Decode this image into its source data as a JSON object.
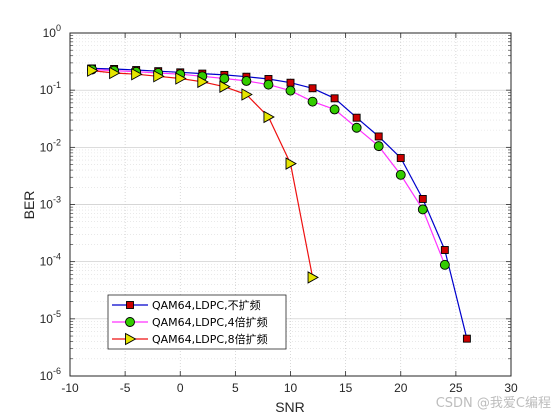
{
  "chart_data": {
    "type": "line",
    "title": "",
    "xlabel": "SNR",
    "ylabel": "BER",
    "xlim": [
      -10,
      30
    ],
    "ylim_log10": [
      -6,
      0
    ],
    "yscale": "log",
    "x_ticks": [
      -10,
      -5,
      0,
      5,
      10,
      15,
      20,
      25,
      30
    ],
    "y_tick_exponents": [
      -6,
      -5,
      -4,
      -3,
      -2,
      -1,
      0
    ],
    "y_tick_base": "10",
    "grid": true,
    "minor_grid": true,
    "legend_position": "bottom-left",
    "series": [
      {
        "name": "QAM64,LDPC,不扩频",
        "color": "#0000cc",
        "marker": "square",
        "marker_fill": "#cc0000",
        "x": [
          -8,
          -6,
          -4,
          -2,
          0,
          2,
          4,
          6,
          8,
          10,
          12,
          14,
          16,
          18,
          20,
          22,
          24,
          26
        ],
        "y": [
          0.24,
          0.235,
          0.225,
          0.215,
          0.205,
          0.195,
          0.185,
          0.172,
          0.157,
          0.135,
          0.108,
          0.072,
          0.033,
          0.0155,
          0.0065,
          0.00125,
          0.00016,
          4.5e-06
        ]
      },
      {
        "name": "QAM64,LDPC,4倍扩频",
        "color": "#ff33ff",
        "marker": "circle",
        "marker_fill": "#33cc00",
        "x": [
          -8,
          -6,
          -4,
          -2,
          0,
          2,
          4,
          6,
          8,
          10,
          12,
          14,
          16,
          18,
          20,
          22,
          24
        ],
        "y": [
          0.23,
          0.22,
          0.21,
          0.2,
          0.19,
          0.175,
          0.16,
          0.145,
          0.125,
          0.098,
          0.063,
          0.046,
          0.022,
          0.0105,
          0.0033,
          0.00082,
          8.8e-05
        ]
      },
      {
        "name": "QAM64,LDPC,8倍扩频",
        "color": "#ee1111",
        "marker": "triangle-right",
        "marker_fill": "#e6e600",
        "x": [
          -8,
          -6,
          -4,
          -2,
          0,
          2,
          4,
          6,
          8,
          10,
          12
        ],
        "y": [
          0.22,
          0.2,
          0.19,
          0.175,
          0.16,
          0.14,
          0.115,
          0.084,
          0.034,
          0.0052,
          5.3e-05
        ]
      }
    ]
  },
  "watermark": "CSDN @我爱C编程"
}
